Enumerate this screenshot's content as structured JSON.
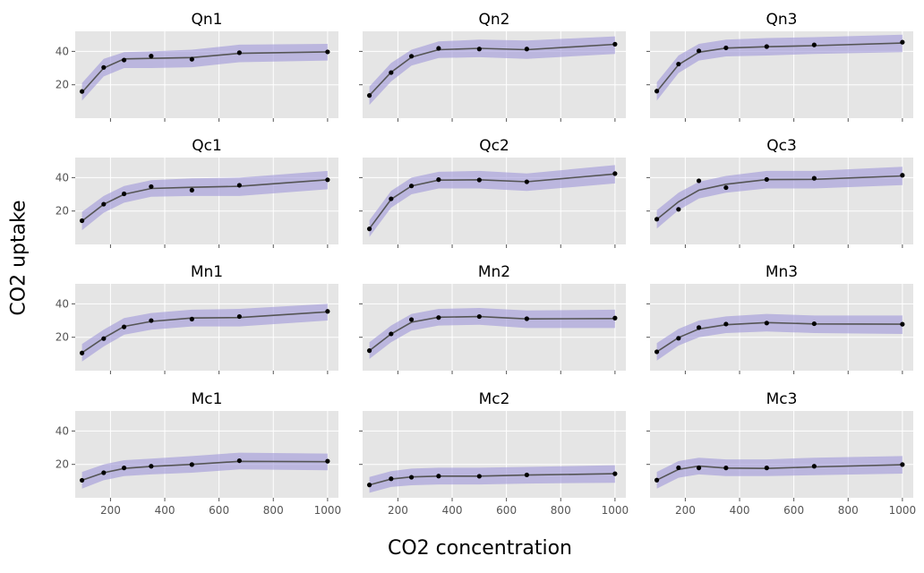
{
  "figure": {
    "xlabel": "CO2 concentration",
    "ylabel": "CO2 uptake"
  },
  "colors": {
    "panel_bg": "#e5e5e5",
    "grid": "#ffffff",
    "line": "#555555",
    "band": "#9e96d8",
    "point": "#000000",
    "tick_text": "#555555"
  },
  "chart_data": [
    {
      "type": "line",
      "title": "Qn1",
      "x": [
        95,
        175,
        250,
        350,
        500,
        675,
        1000
      ],
      "series": [
        {
          "values": [
            16.0,
            30.4,
            34.8,
            37.2,
            35.3,
            39.2,
            39.7
          ],
          "fit": [
            15.5,
            30.0,
            35.5,
            35.8,
            36.3,
            38.8,
            39.7
          ],
          "lower": [
            10.5,
            25.0,
            30.0,
            30.0,
            30.5,
            33.5,
            34.5
          ],
          "upper": [
            21.0,
            35.5,
            39.5,
            40.0,
            41.0,
            44.0,
            44.5
          ]
        }
      ],
      "xlim": [
        70,
        1040
      ],
      "ylim": [
        0,
        52
      ],
      "yticks": [
        20,
        40
      ],
      "xticks": [
        200,
        400,
        600,
        800,
        1000
      ],
      "grid": true
    },
    {
      "type": "line",
      "title": "Qn2",
      "x": [
        95,
        175,
        250,
        350,
        500,
        675,
        1000
      ],
      "series": [
        {
          "values": [
            13.6,
            27.3,
            37.1,
            41.8,
            41.4,
            41.4,
            44.3
          ],
          "fit": [
            13.6,
            27.5,
            36.5,
            41.0,
            41.8,
            41.0,
            44.2
          ],
          "lower": [
            8.0,
            22.0,
            31.5,
            36.0,
            36.5,
            35.5,
            38.5
          ],
          "upper": [
            19.0,
            33.0,
            41.0,
            46.0,
            47.0,
            46.5,
            49.0
          ]
        }
      ],
      "xlim": [
        70,
        1040
      ],
      "ylim": [
        0,
        52
      ],
      "yticks": [
        20,
        40
      ],
      "xticks": [
        200,
        400,
        600,
        800,
        1000
      ],
      "grid": true
    },
    {
      "type": "line",
      "title": "Qn3",
      "x": [
        95,
        175,
        250,
        350,
        500,
        675,
        1000
      ],
      "series": [
        {
          "values": [
            16.2,
            32.4,
            40.3,
            42.1,
            42.9,
            43.9,
            45.5
          ],
          "fit": [
            16.0,
            32.0,
            39.5,
            42.0,
            42.8,
            43.4,
            45.0
          ],
          "lower": [
            10.5,
            27.0,
            34.5,
            37.0,
            37.5,
            38.5,
            39.5
          ],
          "upper": [
            21.5,
            37.5,
            44.5,
            47.0,
            48.0,
            48.5,
            50.0
          ]
        }
      ],
      "xlim": [
        70,
        1040
      ],
      "ylim": [
        0,
        52
      ],
      "yticks": [
        20,
        40
      ],
      "xticks": [
        200,
        400,
        600,
        800,
        1000
      ],
      "grid": true
    },
    {
      "type": "line",
      "title": "Qc1",
      "x": [
        95,
        175,
        250,
        350,
        500,
        675,
        1000
      ],
      "series": [
        {
          "values": [
            14.2,
            24.1,
            30.3,
            34.6,
            32.5,
            35.4,
            38.7
          ],
          "fit": [
            14.0,
            24.0,
            30.0,
            33.5,
            34.2,
            34.8,
            38.7
          ],
          "lower": [
            8.5,
            19.0,
            25.0,
            28.5,
            29.0,
            29.0,
            33.0
          ],
          "upper": [
            19.5,
            29.0,
            35.0,
            38.5,
            39.5,
            40.0,
            44.0
          ]
        }
      ],
      "xlim": [
        70,
        1040
      ],
      "ylim": [
        0,
        52
      ],
      "yticks": [
        20,
        40
      ],
      "xticks": [
        200,
        400,
        600,
        800,
        1000
      ],
      "grid": true
    },
    {
      "type": "line",
      "title": "Qc2",
      "x": [
        95,
        175,
        250,
        350,
        500,
        675,
        1000
      ],
      "series": [
        {
          "values": [
            9.3,
            27.3,
            35.0,
            38.8,
            38.6,
            37.5,
            42.4
          ],
          "fit": [
            9.5,
            27.0,
            35.0,
            38.5,
            38.7,
            37.5,
            42.2
          ],
          "lower": [
            4.5,
            22.0,
            30.0,
            33.5,
            33.5,
            32.0,
            36.5
          ],
          "upper": [
            14.5,
            32.0,
            40.0,
            43.5,
            44.0,
            42.5,
            47.5
          ]
        }
      ],
      "xlim": [
        70,
        1040
      ],
      "ylim": [
        0,
        52
      ],
      "yticks": [
        20,
        40
      ],
      "xticks": [
        200,
        400,
        600,
        800,
        1000
      ],
      "grid": true
    },
    {
      "type": "line",
      "title": "Qc3",
      "x": [
        95,
        175,
        250,
        350,
        500,
        675,
        1000
      ],
      "series": [
        {
          "values": [
            15.1,
            21.0,
            38.1,
            34.0,
            38.9,
            39.6,
            41.4
          ],
          "fit": [
            15.0,
            25.5,
            32.5,
            36.0,
            38.8,
            39.0,
            41.0
          ],
          "lower": [
            9.5,
            20.5,
            27.5,
            31.0,
            33.5,
            33.5,
            35.5
          ],
          "upper": [
            20.5,
            31.0,
            37.5,
            41.0,
            44.0,
            44.0,
            46.5
          ]
        }
      ],
      "xlim": [
        70,
        1040
      ],
      "ylim": [
        0,
        52
      ],
      "yticks": [
        20,
        40
      ],
      "xticks": [
        200,
        400,
        600,
        800,
        1000
      ],
      "grid": true
    },
    {
      "type": "line",
      "title": "Mn1",
      "x": [
        95,
        175,
        250,
        350,
        500,
        675,
        1000
      ],
      "series": [
        {
          "values": [
            10.6,
            19.2,
            26.2,
            30.0,
            30.9,
            32.4,
            35.5
          ],
          "fit": [
            10.8,
            19.5,
            26.5,
            29.5,
            31.5,
            31.8,
            35.2
          ],
          "lower": [
            5.5,
            14.5,
            21.5,
            24.5,
            26.5,
            26.5,
            30.0
          ],
          "upper": [
            16.0,
            24.5,
            31.5,
            34.5,
            36.5,
            37.0,
            40.0
          ]
        }
      ],
      "xlim": [
        70,
        1040
      ],
      "ylim": [
        0,
        52
      ],
      "yticks": [
        20,
        40
      ],
      "xticks": [
        200,
        400,
        600,
        800,
        1000
      ],
      "grid": true
    },
    {
      "type": "line",
      "title": "Mn2",
      "x": [
        95,
        175,
        250,
        350,
        500,
        675,
        1000
      ],
      "series": [
        {
          "values": [
            12.0,
            22.0,
            30.6,
            31.8,
            32.4,
            31.1,
            31.5
          ],
          "fit": [
            12.0,
            22.0,
            29.0,
            32.0,
            32.4,
            31.0,
            31.2
          ],
          "lower": [
            7.0,
            17.0,
            24.0,
            27.0,
            27.5,
            25.5,
            25.5
          ],
          "upper": [
            17.0,
            27.0,
            34.0,
            37.0,
            37.5,
            36.0,
            36.5
          ]
        }
      ],
      "xlim": [
        70,
        1040
      ],
      "ylim": [
        0,
        52
      ],
      "yticks": [
        20,
        40
      ],
      "xticks": [
        200,
        400,
        600,
        800,
        1000
      ],
      "grid": true
    },
    {
      "type": "line",
      "title": "Mn3",
      "x": [
        95,
        175,
        250,
        350,
        500,
        675,
        1000
      ],
      "series": [
        {
          "values": [
            11.3,
            19.4,
            25.8,
            27.9,
            28.5,
            28.1,
            27.8
          ],
          "fit": [
            11.3,
            19.8,
            25.0,
            27.5,
            28.8,
            28.0,
            27.8
          ],
          "lower": [
            6.0,
            15.0,
            20.0,
            22.5,
            23.5,
            22.5,
            22.0
          ],
          "upper": [
            16.5,
            25.0,
            30.0,
            32.5,
            34.0,
            33.0,
            33.0
          ]
        }
      ],
      "xlim": [
        70,
        1040
      ],
      "ylim": [
        0,
        52
      ],
      "yticks": [
        20,
        40
      ],
      "xticks": [
        200,
        400,
        600,
        800,
        1000
      ],
      "grid": true
    },
    {
      "type": "line",
      "title": "Mc1",
      "x": [
        95,
        175,
        250,
        350,
        500,
        675,
        1000
      ],
      "series": [
        {
          "values": [
            10.5,
            15.0,
            17.9,
            18.9,
            19.9,
            22.2,
            21.9
          ],
          "fit": [
            10.5,
            15.0,
            17.6,
            18.8,
            20.0,
            21.8,
            21.6
          ],
          "lower": [
            5.5,
            10.5,
            13.0,
            14.0,
            15.0,
            17.0,
            16.5
          ],
          "upper": [
            15.5,
            20.0,
            22.5,
            23.5,
            25.0,
            27.0,
            26.5
          ]
        }
      ],
      "xlim": [
        70,
        1040
      ],
      "ylim": [
        0,
        52
      ],
      "yticks": [
        20,
        40
      ],
      "xticks": [
        200,
        400,
        600,
        800,
        1000
      ],
      "grid": true
    },
    {
      "type": "line",
      "title": "Mc2",
      "x": [
        95,
        175,
        250,
        350,
        500,
        675,
        1000
      ],
      "series": [
        {
          "values": [
            7.7,
            11.4,
            12.3,
            13.0,
            12.9,
            13.7,
            14.4
          ],
          "fit": [
            7.7,
            11.2,
            12.5,
            13.0,
            13.0,
            13.6,
            14.4
          ],
          "lower": [
            3.0,
            6.5,
            7.5,
            8.0,
            8.0,
            8.5,
            9.0
          ],
          "upper": [
            12.5,
            16.0,
            17.5,
            18.0,
            18.0,
            18.5,
            19.5
          ]
        }
      ],
      "xlim": [
        70,
        1040
      ],
      "ylim": [
        0,
        52
      ],
      "yticks": [
        20,
        40
      ],
      "xticks": [
        200,
        400,
        600,
        800,
        1000
      ],
      "grid": true
    },
    {
      "type": "line",
      "title": "Mc3",
      "x": [
        95,
        175,
        250,
        350,
        500,
        675,
        1000
      ],
      "series": [
        {
          "values": [
            10.6,
            18.0,
            17.9,
            17.9,
            17.9,
            18.9,
            19.9
          ],
          "fit": [
            10.6,
            17.0,
            19.0,
            17.8,
            17.6,
            18.5,
            19.8
          ],
          "lower": [
            5.5,
            12.0,
            14.0,
            13.0,
            13.0,
            13.5,
            14.5
          ],
          "upper": [
            15.5,
            22.0,
            24.0,
            23.0,
            23.0,
            24.0,
            25.0
          ]
        }
      ],
      "xlim": [
        70,
        1040
      ],
      "ylim": [
        0,
        52
      ],
      "yticks": [
        20,
        40
      ],
      "xticks": [
        200,
        400,
        600,
        800,
        1000
      ],
      "grid": true
    }
  ]
}
